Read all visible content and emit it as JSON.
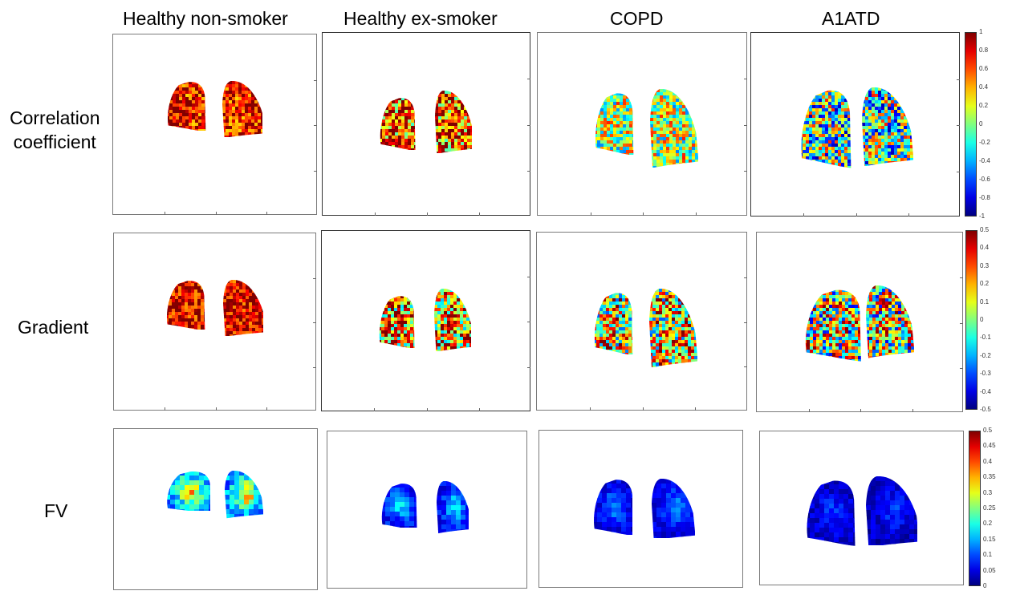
{
  "column_titles": [
    "Healthy non-smoker",
    "Healthy ex-smoker",
    "COPD",
    "A1ATD"
  ],
  "row_titles": [
    "Correlation\ncoefficient",
    "Gradient",
    "FV"
  ],
  "colorbars": [
    {
      "ticks": [
        "1",
        "0.8",
        "0.6",
        "0.4",
        "0.2",
        "0",
        "-0.2",
        "-0.4",
        "-0.6",
        "-0.8",
        "-1"
      ]
    },
    {
      "ticks": [
        "0.5",
        "0.4",
        "0.3",
        "0.2",
        "0.1",
        "0",
        "-0.1",
        "-0.2",
        "-0.3",
        "-0.4",
        "-0.5"
      ]
    },
    {
      "ticks": [
        "0.5",
        "0.45",
        "0.4",
        "0.35",
        "0.3",
        "0.25",
        "0.2",
        "0.15",
        "0.1",
        "0.05",
        "0"
      ]
    }
  ],
  "colormap": "jet",
  "colors": {
    "jet_low": "#00008f",
    "jet_mid": "#80ff80",
    "jet_high": "#800000"
  }
}
